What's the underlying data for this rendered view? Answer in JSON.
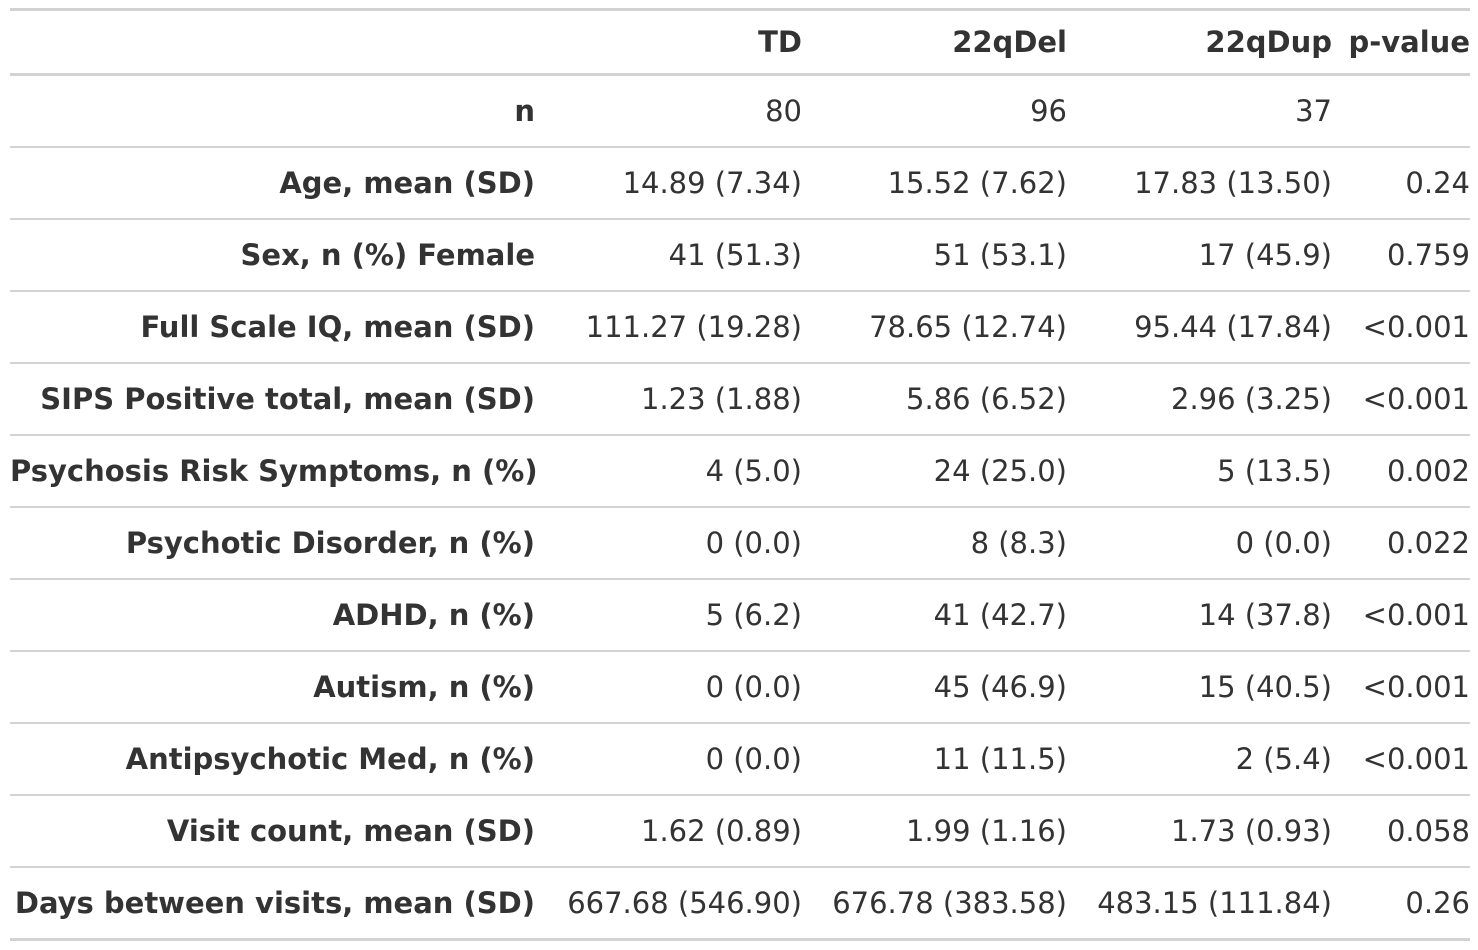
{
  "table": {
    "headers": [
      "",
      "TD",
      "22qDel",
      "22qDup",
      "p-value"
    ],
    "rows": [
      {
        "label": "n",
        "values": [
          "80",
          "96",
          "37",
          ""
        ]
      },
      {
        "label": "Age, mean (SD)",
        "values": [
          "14.89 (7.34)",
          "15.52 (7.62)",
          "17.83 (13.50)",
          "0.24"
        ]
      },
      {
        "label": "Sex, n (%) Female",
        "values": [
          "41 (51.3)",
          "51 (53.1)",
          "17 (45.9)",
          "0.759"
        ]
      },
      {
        "label": "Full Scale IQ, mean (SD)",
        "values": [
          "111.27 (19.28)",
          "78.65 (12.74)",
          "95.44 (17.84)",
          "<0.001"
        ]
      },
      {
        "label": "SIPS Positive total, mean (SD)",
        "values": [
          "1.23 (1.88)",
          "5.86 (6.52)",
          "2.96 (3.25)",
          "<0.001"
        ]
      },
      {
        "label": "Psychosis Risk Symptoms, n (%)",
        "values": [
          "4 (5.0)",
          "24 (25.0)",
          "5 (13.5)",
          "0.002"
        ]
      },
      {
        "label": "Psychotic Disorder, n (%)",
        "values": [
          "0 (0.0)",
          "8 (8.3)",
          "0 (0.0)",
          "0.022"
        ]
      },
      {
        "label": "ADHD, n (%)",
        "values": [
          "5 (6.2)",
          "41 (42.7)",
          "14 (37.8)",
          "<0.001"
        ]
      },
      {
        "label": "Autism, n (%)",
        "values": [
          "0 (0.0)",
          "45 (46.9)",
          "15 (40.5)",
          "<0.001"
        ]
      },
      {
        "label": "Antipsychotic Med, n (%)",
        "values": [
          "0 (0.0)",
          "11 (11.5)",
          "2 (5.4)",
          "<0.001"
        ]
      },
      {
        "label": "Visit count, mean (SD)",
        "values": [
          "1.62 (0.89)",
          "1.99 (1.16)",
          "1.73 (0.93)",
          "0.058"
        ]
      },
      {
        "label": "Days between visits, mean (SD)",
        "values": [
          "667.68 (546.90)",
          "676.78 (383.58)",
          "483.15 (111.84)",
          "0.26"
        ]
      }
    ]
  },
  "colors": {
    "text": "#333333",
    "rule": "#d3d3d3",
    "background": "#ffffff"
  }
}
